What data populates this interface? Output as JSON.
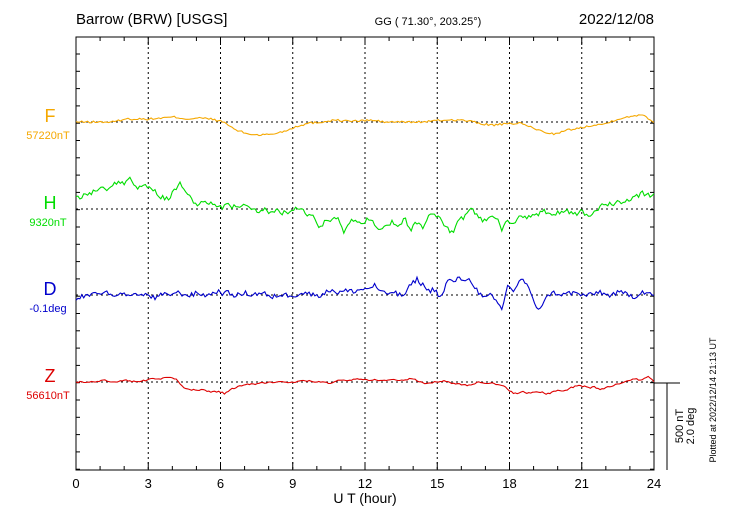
{
  "header": {
    "station": "Barrow (BRW)  [USGS]",
    "coords": "GG ( 71.30°, 203.25°)",
    "date": "2022/12/08"
  },
  "plot_stamp": "Plotted at 2022/12/14 21:13 UT",
  "scale_bar": {
    "nt_label": "500 nT",
    "deg_label": "2.0 deg"
  },
  "chart_data": {
    "type": "line",
    "xlabel": "U T (hour)",
    "xlim": [
      0,
      24
    ],
    "xticks": [
      "0",
      "3",
      "6",
      "9",
      "12",
      "15",
      "18",
      "21",
      "24"
    ],
    "grid": true,
    "series": [
      {
        "name": "F",
        "baseline_label": "57220nT",
        "color": "#f5a800",
        "noise": 2,
        "values": [
          0,
          0,
          0,
          0,
          3,
          3,
          3,
          4,
          5,
          3,
          4,
          3,
          0,
          -8,
          -12,
          -13,
          -12,
          -9,
          -4,
          -1,
          0,
          2,
          1,
          1,
          2,
          0,
          0,
          0,
          0,
          1,
          2,
          2,
          1,
          -2,
          -3,
          -2,
          -1,
          -5,
          -10,
          -12,
          -8,
          -6,
          -3,
          -2,
          3,
          5,
          8,
          0
        ]
      },
      {
        "name": "H",
        "baseline_label": "9320nT",
        "color": "#00dd00",
        "noise": 5,
        "values": [
          10,
          12,
          15,
          18,
          22,
          20,
          24,
          28,
          25,
          30,
          22,
          24,
          20,
          18,
          12,
          10,
          16,
          28,
          18,
          10,
          4,
          6,
          6,
          4,
          2,
          4,
          2,
          2,
          3,
          0,
          -2,
          0,
          -4,
          -2,
          -4,
          -5,
          0,
          0,
          -6,
          -8,
          -20,
          -10,
          -12,
          -8,
          -22,
          -12,
          -10,
          -18,
          -10,
          -14,
          -20,
          -18,
          -12,
          -16,
          -10,
          -20,
          -14,
          -18,
          -6,
          -5,
          -10,
          -20,
          -25,
          -10,
          -8,
          0,
          -8,
          -12,
          -6,
          -8,
          -20,
          -12,
          -14,
          -8,
          -10,
          -4,
          -5,
          -2,
          -5,
          -4,
          -2,
          -3,
          -5,
          -2,
          -6,
          -4,
          2,
          6,
          5,
          7,
          8,
          10,
          12,
          16,
          14,
          14
        ]
      },
      {
        "name": "D",
        "baseline_label": "-0.1deg",
        "color": "#0000cc",
        "noise": 5,
        "values": [
          -4,
          -2,
          0,
          0,
          2,
          4,
          -2,
          2,
          0,
          -2,
          0,
          0,
          0,
          -4,
          0,
          0,
          2,
          2,
          0,
          0,
          2,
          0,
          0,
          4,
          2,
          2,
          0,
          0,
          2,
          0,
          2,
          2,
          -4,
          0,
          0,
          0,
          0,
          2,
          2,
          0,
          0,
          2,
          6,
          2,
          4,
          4,
          4,
          6,
          6,
          10,
          4,
          0,
          4,
          0,
          0,
          10,
          16,
          10,
          4,
          6,
          -4,
          14,
          14,
          16,
          16,
          14,
          4,
          -4,
          0,
          -6,
          -14,
          10,
          4,
          16,
          12,
          -4,
          -14,
          -6,
          2,
          2,
          0,
          2,
          2,
          0,
          0,
          0,
          4,
          0,
          0,
          2,
          2,
          0,
          -2,
          4,
          2,
          0
        ]
      },
      {
        "name": "Z",
        "baseline_label": "56610nT",
        "color": "#dd0000",
        "noise": 1.5,
        "values": [
          0,
          0,
          0,
          0,
          1,
          2,
          0,
          0,
          2,
          1,
          0,
          1,
          2,
          4,
          3,
          4,
          4,
          2,
          -6,
          -8,
          -8,
          -8,
          -9,
          -10,
          -9,
          -12,
          -7,
          -5,
          -3,
          -2,
          -2,
          -1,
          -1,
          0,
          0,
          0,
          0,
          0,
          1,
          1,
          0,
          0,
          -1,
          -1,
          2,
          2,
          2,
          3,
          2,
          2,
          2,
          2,
          2,
          2,
          2,
          2,
          3,
          2,
          0,
          -2,
          0,
          0,
          1,
          -1,
          -2,
          -3,
          -3,
          -1,
          0,
          -1,
          -1,
          -3,
          -4,
          -10,
          -12,
          -10,
          -11,
          -10,
          -10,
          -12,
          -10,
          -8,
          -9,
          -6,
          -4,
          -4,
          -6,
          -5,
          -8,
          -5,
          -4,
          -2,
          0,
          2,
          3,
          2,
          6,
          0
        ]
      }
    ]
  }
}
